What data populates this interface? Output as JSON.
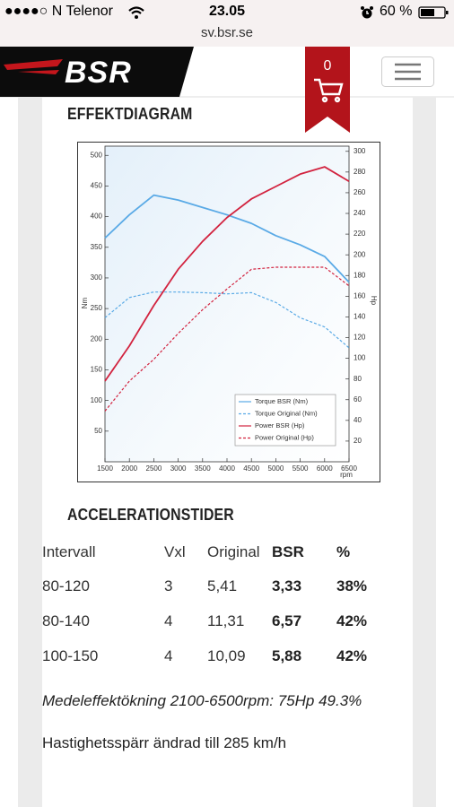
{
  "status_bar": {
    "carrier": "●●●●○ N Telenor",
    "time": "23.05",
    "battery": "60 %"
  },
  "address_bar": {
    "url": "sv.bsr.se"
  },
  "header": {
    "logo": "BSR",
    "cart_count": 0
  },
  "diagram_heading": "EFFEKTDIAGRAM",
  "chart_data": {
    "type": "line",
    "x_label": "rpm",
    "y_label": "Nm",
    "y2_label": "Hp",
    "x": [
      1500,
      2000,
      2500,
      3000,
      3500,
      4000,
      4500,
      5000,
      5500,
      6000,
      6500
    ],
    "xlim": [
      1500,
      6500
    ],
    "xticks": [
      1500,
      2000,
      2500,
      3000,
      3500,
      4000,
      4500,
      5000,
      5500,
      6000,
      6500
    ],
    "ylim": [
      0,
      515
    ],
    "yticks": [
      50,
      100,
      150,
      200,
      250,
      300,
      350,
      400,
      450,
      500
    ],
    "y2lim": [
      0,
      305
    ],
    "y2ticks": [
      20,
      40,
      60,
      80,
      100,
      120,
      140,
      160,
      180,
      200,
      220,
      240,
      260,
      280,
      300
    ],
    "grid": false,
    "legend": "lower right",
    "series": [
      {
        "name": "Torque BSR (Nm)",
        "color": "#5aaae6",
        "line_style": "solid",
        "axis": "y",
        "values": [
          365,
          403,
          435,
          427,
          415,
          403,
          389,
          369,
          354,
          335,
          293
        ]
      },
      {
        "name": "Torque Original (Nm)",
        "color": "#5aaae6",
        "line_style": "dashed",
        "axis": "y",
        "values": [
          235,
          268,
          277,
          277,
          276,
          274,
          276,
          260,
          235,
          220,
          186
        ]
      },
      {
        "name": "Power BSR (Hp)",
        "color": "#d2233f",
        "line_style": "solid",
        "axis": "y2",
        "values": [
          78,
          112,
          151,
          186,
          213,
          236,
          254,
          266,
          278,
          285,
          271
        ]
      },
      {
        "name": "Power Original (Hp)",
        "color": "#d2233f",
        "line_style": "dashed",
        "axis": "y2",
        "values": [
          49,
          78,
          99,
          124,
          147,
          167,
          186,
          188,
          188,
          188,
          170
        ]
      }
    ]
  },
  "acceleration": {
    "heading": "ACCELERATIONSTIDER",
    "columns": [
      "Intervall",
      "Vxl",
      "Original",
      "BSR",
      "%"
    ],
    "rows": [
      [
        "80-120",
        "3",
        "5,41",
        "3,33",
        "38%"
      ],
      [
        "80-140",
        "4",
        "11,31",
        "6,57",
        "42%"
      ],
      [
        "100-150",
        "4",
        "10,09",
        "5,88",
        "42%"
      ]
    ]
  },
  "notes": [
    "Medeleffektökning 2100-6500rpm: 75Hp 49.3%",
    "Hastighetsspärr ändrad till 285 km/h"
  ]
}
